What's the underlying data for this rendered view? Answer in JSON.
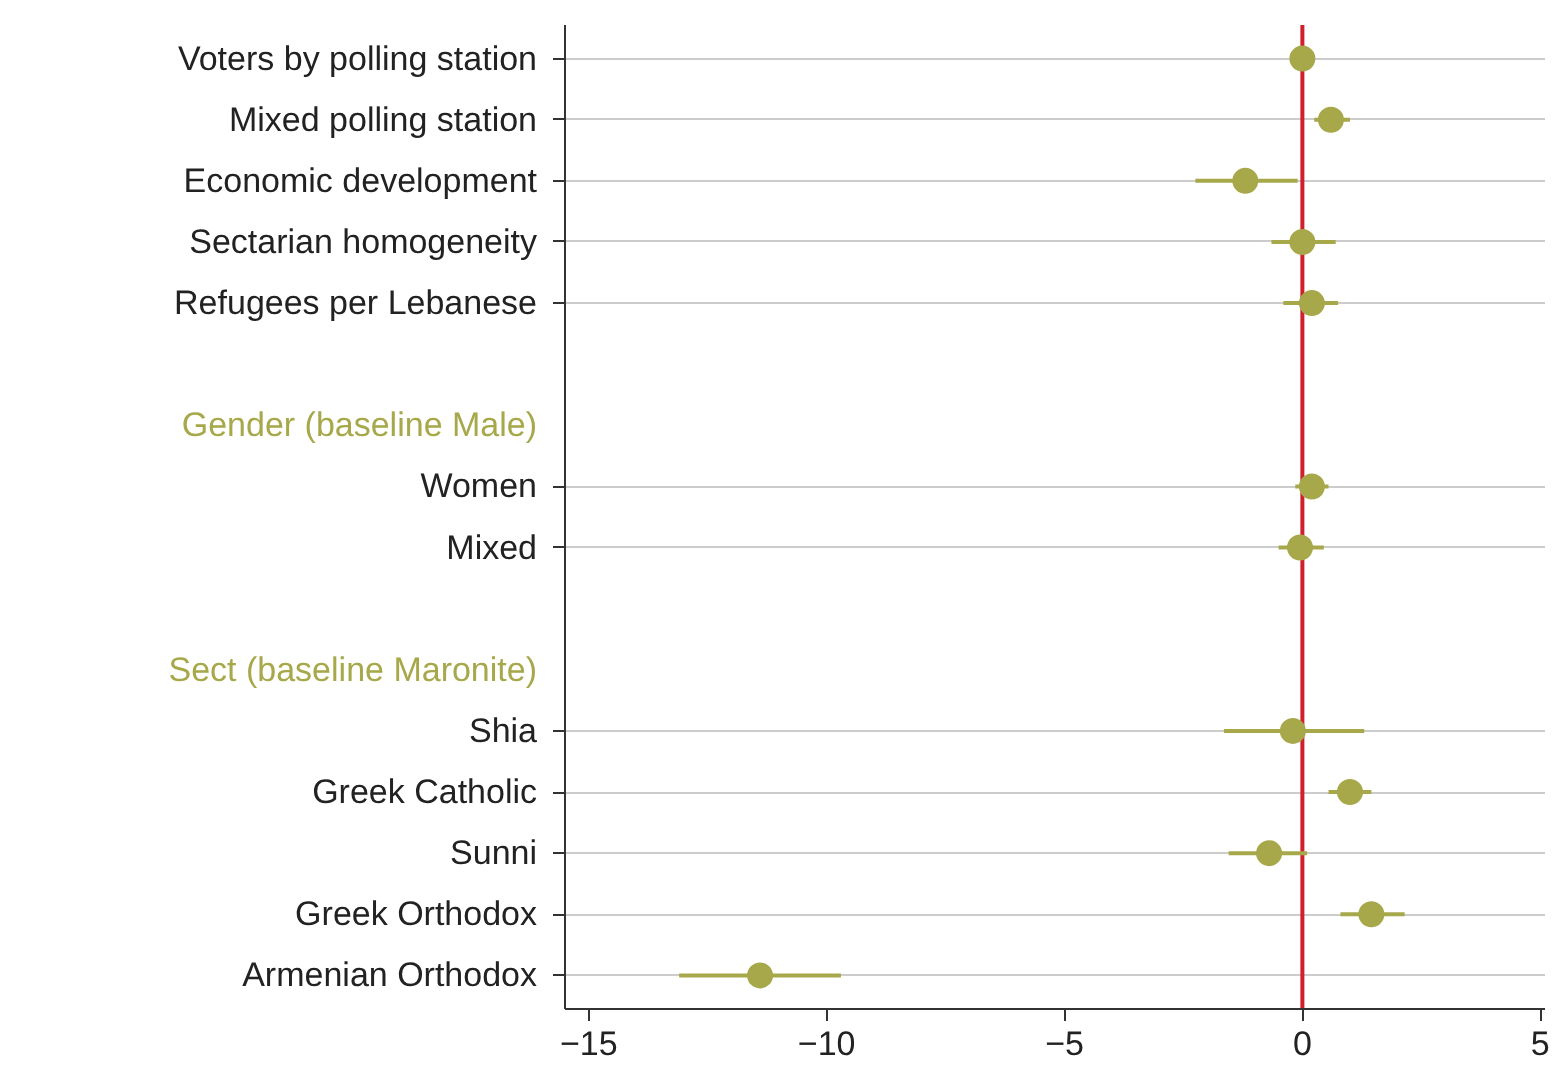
{
  "chart_data": {
    "type": "scatter",
    "orientation": "horizontal",
    "categories": [
      "Voters by polling station",
      "Mixed polling station",
      "Economic development",
      "Sectarian homogeneity",
      "Refugees per Lebanese",
      null,
      "Gender (baseline Male)",
      "Women",
      "Mixed",
      null,
      "Sect (baseline Maronite)",
      "Shia",
      "Greek Catholic",
      "Sunni",
      "Greek Orthodox",
      "Armenian Orthodox"
    ],
    "series": [
      {
        "color": "#a7a84a",
        "values": [
          0.0,
          0.6,
          -1.2,
          0.0,
          0.2,
          null,
          null,
          0.2,
          -0.05,
          null,
          null,
          -0.2,
          1.0,
          -0.7,
          1.45,
          -11.4
        ],
        "errors": [
          null,
          [
            0.25,
            1.0
          ],
          [
            -2.25,
            -0.1
          ],
          [
            -0.65,
            0.7
          ],
          [
            -0.4,
            0.75
          ],
          null,
          null,
          [
            -0.15,
            0.55
          ],
          [
            -0.5,
            0.45
          ],
          null,
          null,
          [
            -1.65,
            1.3
          ],
          [
            0.55,
            1.45
          ],
          [
            -1.55,
            0.1
          ],
          [
            0.8,
            2.15
          ],
          [
            -13.1,
            -9.7
          ]
        ]
      }
    ],
    "xlim": [
      -15.5,
      5.1
    ],
    "xticks": [
      -15,
      -10,
      -5,
      0,
      5
    ],
    "ref_lines": [
      {
        "axis": "x",
        "value": 0,
        "color": "#d0202e"
      }
    ],
    "grid": "y",
    "marker": "circle"
  }
}
